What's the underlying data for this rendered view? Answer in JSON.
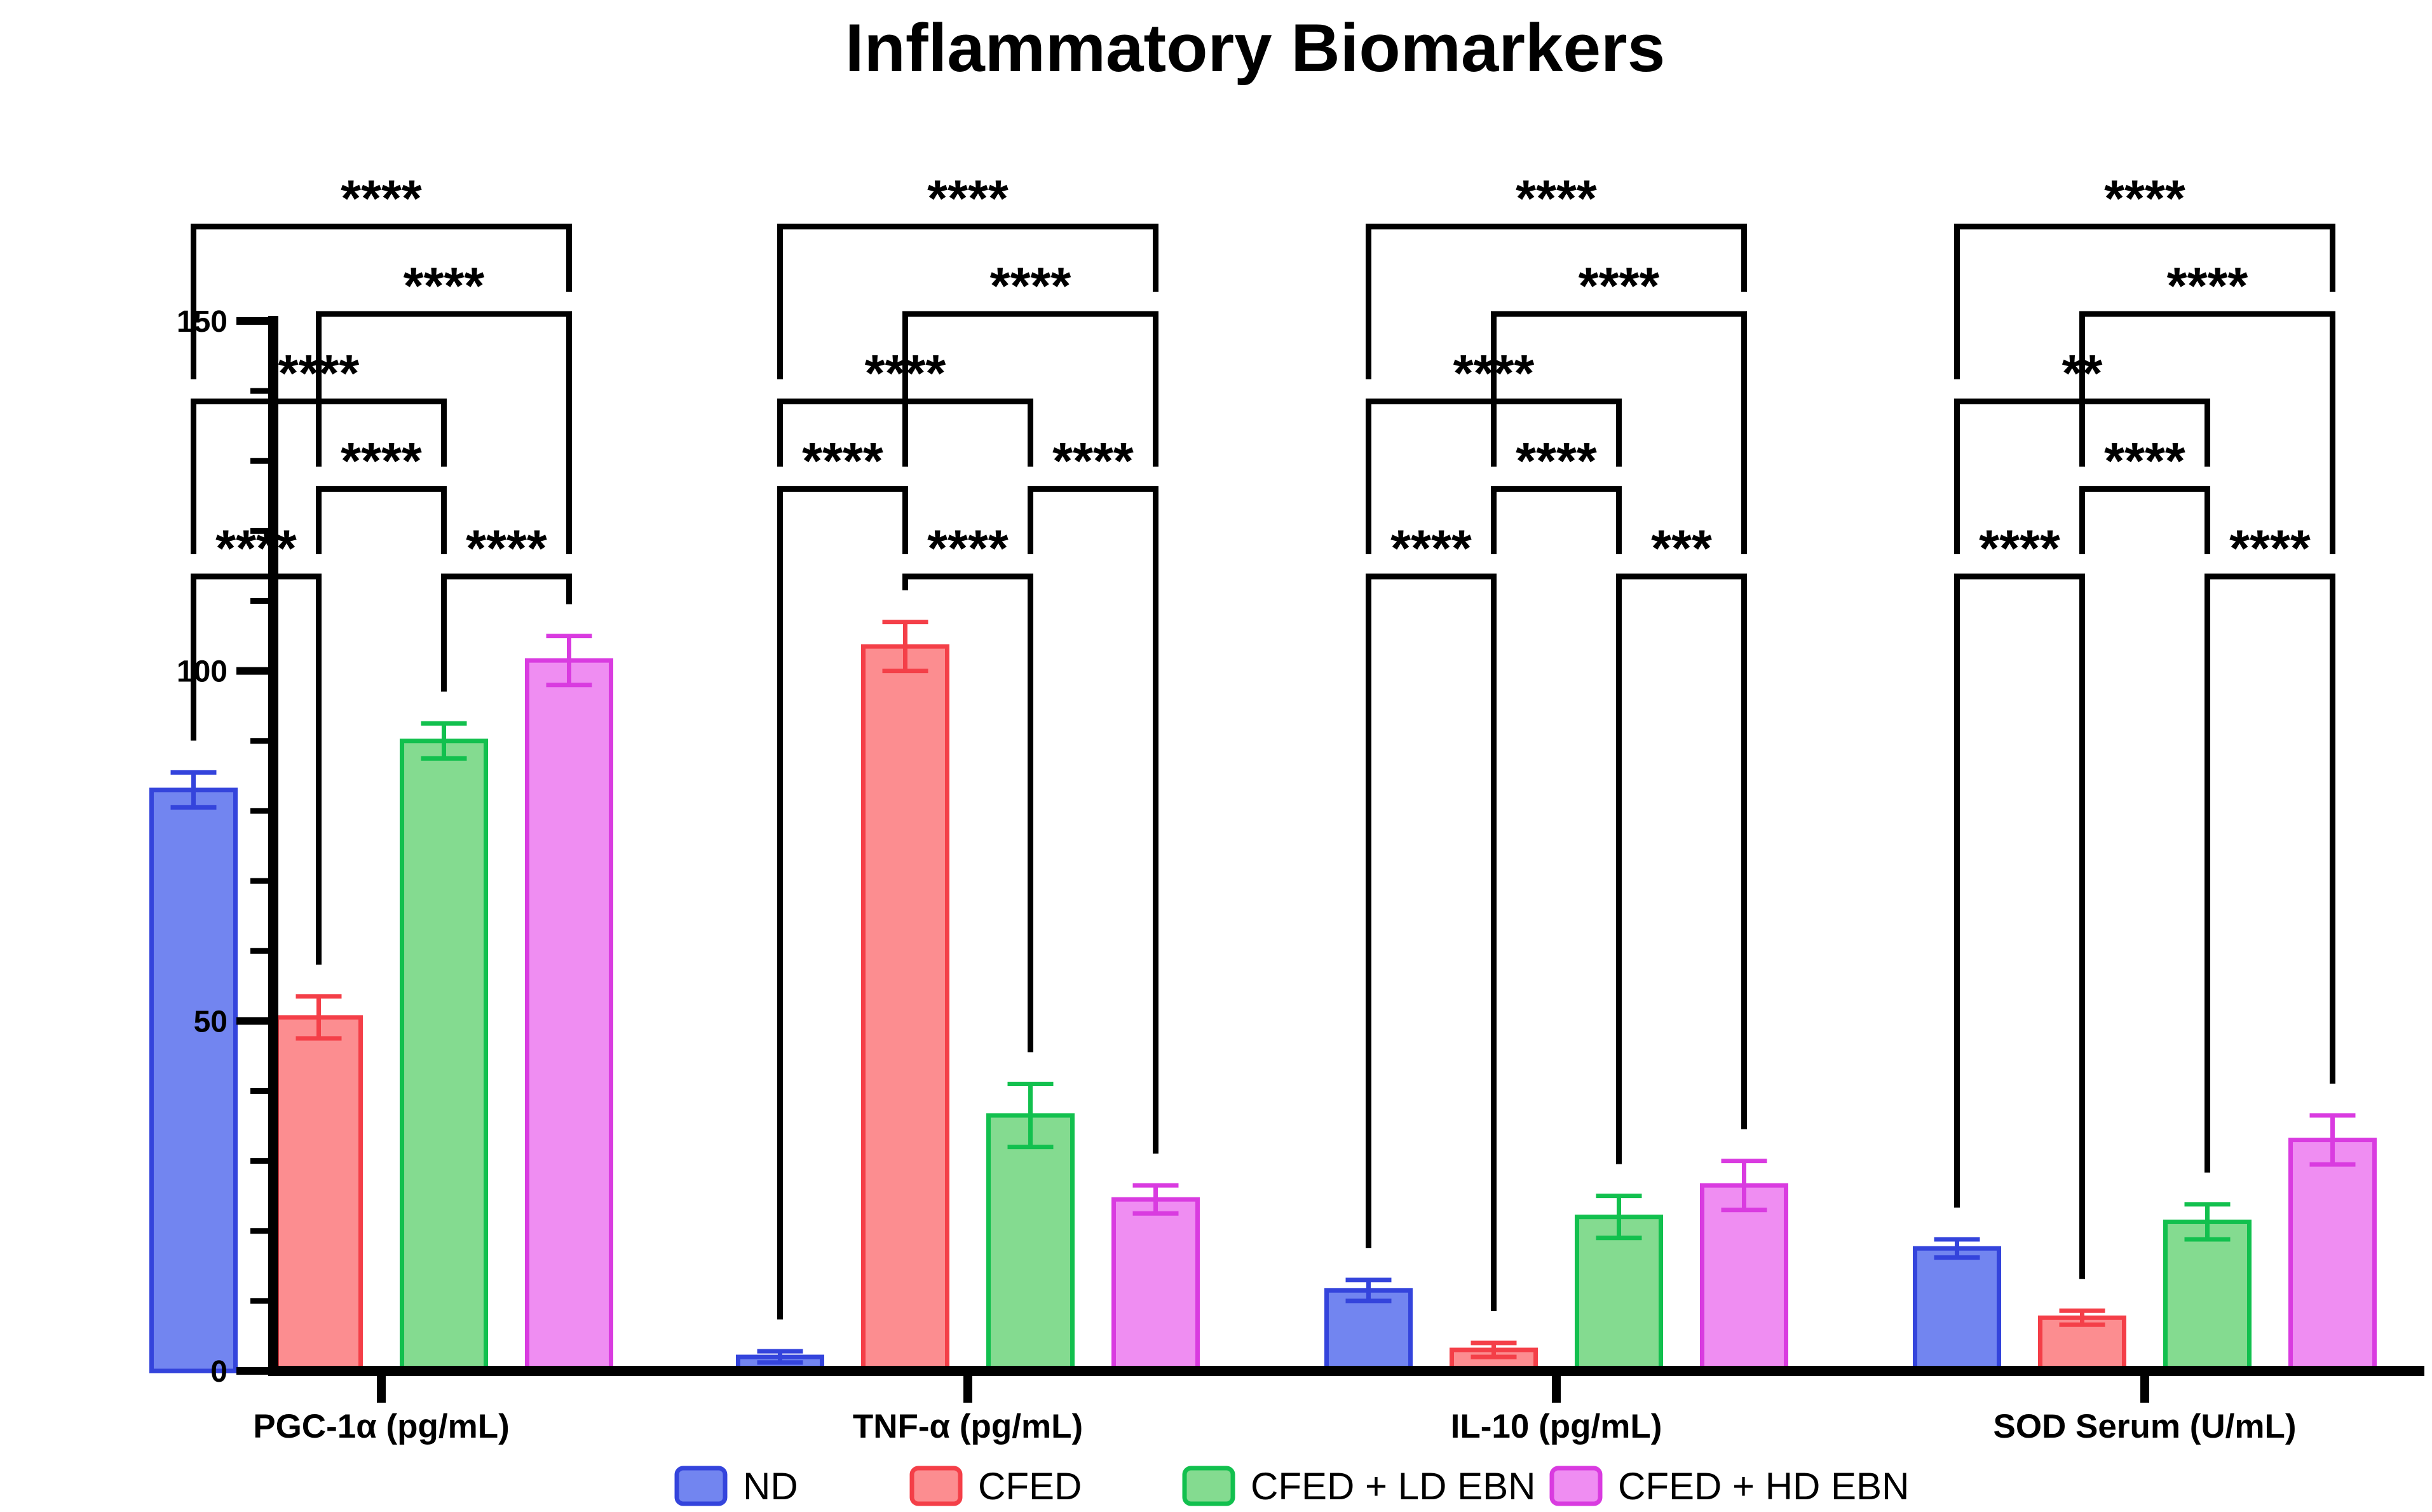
{
  "title": "Inflammatory Biomarkers",
  "chart_data": {
    "type": "bar",
    "title": "Inflammatory Biomarkers",
    "xlabel": "",
    "ylabel": "",
    "ylim": [
      0,
      150
    ],
    "yticks": [
      0,
      50,
      100,
      150
    ],
    "minor_tick_step": 10,
    "grid": false,
    "legend_position": "bottom",
    "categories": [
      "PGC-1α (pg/mL)",
      "TNF-α (pg/mL)",
      "IL-10 (pg/mL)",
      "SOD Serum (U/mL)"
    ],
    "series": [
      {
        "name": "ND",
        "fill": "#7285F0",
        "border": "#3444DC",
        "values": [
          83.0,
          2.0,
          11.5,
          17.5
        ],
        "errors": [
          2.5,
          0.8,
          1.5,
          1.3
        ]
      },
      {
        "name": "CFED",
        "fill": "#FC8D90",
        "border": "#F43F48",
        "values": [
          50.5,
          103.5,
          3.0,
          7.6
        ],
        "errors": [
          3.0,
          3.5,
          1.0,
          1.0
        ]
      },
      {
        "name": "CFED + LD EBN",
        "fill": "#84DB90",
        "border": "#12C04E",
        "values": [
          90.0,
          36.5,
          22.0,
          21.3
        ],
        "errors": [
          2.5,
          4.5,
          3.0,
          2.5
        ]
      },
      {
        "name": "CFED + HD EBN",
        "fill": "#EF8DF2",
        "border": "#D93BE0",
        "values": [
          101.5,
          24.5,
          26.5,
          33.0
        ],
        "errors": [
          3.5,
          2.0,
          3.5,
          3.5
        ]
      }
    ],
    "significance": [
      {
        "group": "PGC-1α (pg/mL)",
        "comparisons": [
          {
            "bars": [
              1,
              4
            ],
            "stars": "****",
            "level": 163.5
          },
          {
            "bars": [
              2,
              4
            ],
            "stars": "****",
            "level": 151
          },
          {
            "bars": [
              1,
              3
            ],
            "stars": "****",
            "level": 138.5
          },
          {
            "bars": [
              2,
              3
            ],
            "stars": "****",
            "level": 126
          },
          {
            "bars": [
              1,
              2
            ],
            "stars": "****",
            "level": 113.5
          },
          {
            "bars": [
              3,
              4
            ],
            "stars": "****",
            "level": 113.5
          }
        ]
      },
      {
        "group": "TNF-α (pg/mL)",
        "comparisons": [
          {
            "bars": [
              1,
              4
            ],
            "stars": "****",
            "level": 163.5
          },
          {
            "bars": [
              2,
              4
            ],
            "stars": "****",
            "level": 151
          },
          {
            "bars": [
              1,
              3
            ],
            "stars": "****",
            "level": 138.5
          },
          {
            "bars": [
              1,
              2
            ],
            "stars": "****",
            "level": 126
          },
          {
            "bars": [
              3,
              4
            ],
            "stars": "****",
            "level": 126
          },
          {
            "bars": [
              2,
              3
            ],
            "stars": "****",
            "level": 113.5
          }
        ]
      },
      {
        "group": "IL-10 (pg/mL)",
        "comparisons": [
          {
            "bars": [
              1,
              4
            ],
            "stars": "****",
            "level": 163.5
          },
          {
            "bars": [
              2,
              4
            ],
            "stars": "****",
            "level": 151
          },
          {
            "bars": [
              1,
              3
            ],
            "stars": "****",
            "level": 138.5
          },
          {
            "bars": [
              2,
              3
            ],
            "stars": "****",
            "level": 126
          },
          {
            "bars": [
              1,
              2
            ],
            "stars": "****",
            "level": 113.5
          },
          {
            "bars": [
              3,
              4
            ],
            "stars": "***",
            "level": 113.5
          }
        ]
      },
      {
        "group": "SOD Serum (U/mL)",
        "comparisons": [
          {
            "bars": [
              1,
              4
            ],
            "stars": "****",
            "level": 163.5
          },
          {
            "bars": [
              2,
              4
            ],
            "stars": "****",
            "level": 151
          },
          {
            "bars": [
              1,
              3
            ],
            "stars": "**",
            "level": 138.5
          },
          {
            "bars": [
              2,
              3
            ],
            "stars": "****",
            "level": 126
          },
          {
            "bars": [
              1,
              2
            ],
            "stars": "****",
            "level": 113.5
          },
          {
            "bars": [
              3,
              4
            ],
            "stars": "****",
            "level": 113.5
          }
        ]
      }
    ],
    "legend": [
      "ND",
      "CFED",
      "CFED + LD EBN",
      "CFED + HD EBN"
    ],
    "axis_color": "#000000",
    "annotation_color": "#000000"
  }
}
